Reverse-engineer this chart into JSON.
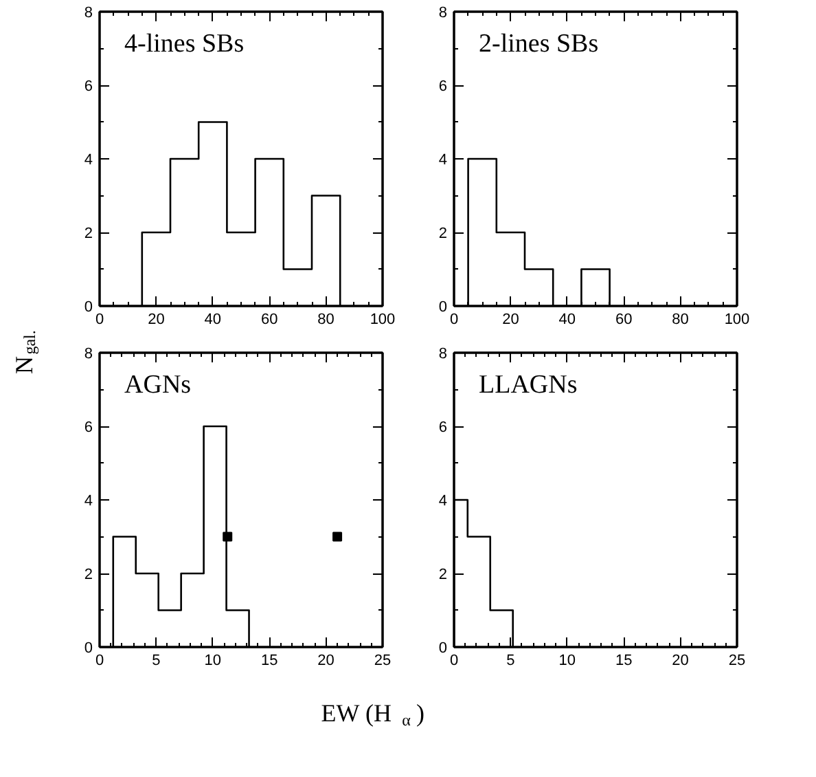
{
  "chart_data": [
    {
      "type": "histogram",
      "title": "4-lines SBs",
      "ylabel": "N$_{gal.}$",
      "bins": [
        15,
        25,
        35,
        45,
        55,
        65,
        75,
        85
      ],
      "values": [
        2,
        4,
        5,
        2,
        4,
        1,
        3
      ],
      "color": "#000000",
      "xlim": [
        0,
        100
      ],
      "xticks": [
        0,
        20,
        40,
        60,
        80,
        100
      ],
      "ylim": [
        0,
        8
      ],
      "yticks": [
        0,
        2,
        4,
        6,
        8
      ],
      "grid": false
    },
    {
      "type": "histogram",
      "title": "2-lines SBs",
      "bins": [
        5,
        15,
        25,
        35,
        45,
        55
      ],
      "values": [
        4,
        2,
        1,
        0,
        1
      ],
      "color": "#000000",
      "xlim": [
        0,
        100
      ],
      "xticks": [
        0,
        20,
        40,
        60,
        80,
        100
      ],
      "ylim": [
        0,
        8
      ],
      "yticks": [
        0,
        2,
        4,
        6,
        8
      ],
      "grid": false
    },
    {
      "type": "histogram",
      "title": "AGNs",
      "xlabel": "EW (H$_{α}$)",
      "bins": [
        1.2,
        3.2,
        5.2,
        7.2,
        9.2,
        11.2,
        13.2
      ],
      "values": [
        3,
        2,
        1,
        2,
        6,
        1
      ],
      "color": "#000000",
      "xlim": [
        0,
        25
      ],
      "xticks": [
        0,
        5,
        10,
        15,
        20,
        25
      ],
      "ylim": [
        0,
        8
      ],
      "yticks": [
        0,
        2,
        4,
        6,
        8
      ],
      "grid": false,
      "series": [
        {
          "type": "scatter",
          "x": [
            11.3,
            21
          ],
          "values": [
            3,
            3
          ],
          "color": "#000000",
          "marker": "square"
        }
      ]
    },
    {
      "type": "histogram",
      "title": "LLAGNs",
      "bins": [
        0,
        1.2,
        3.2,
        5.2
      ],
      "values": [
        4,
        3,
        1
      ],
      "color": "#000000",
      "xlim": [
        0,
        25
      ],
      "xticks": [
        0,
        5,
        10,
        15,
        20,
        25
      ],
      "ylim": [
        0,
        8
      ],
      "yticks": [
        0,
        2,
        4,
        6,
        8
      ],
      "grid": false
    }
  ]
}
